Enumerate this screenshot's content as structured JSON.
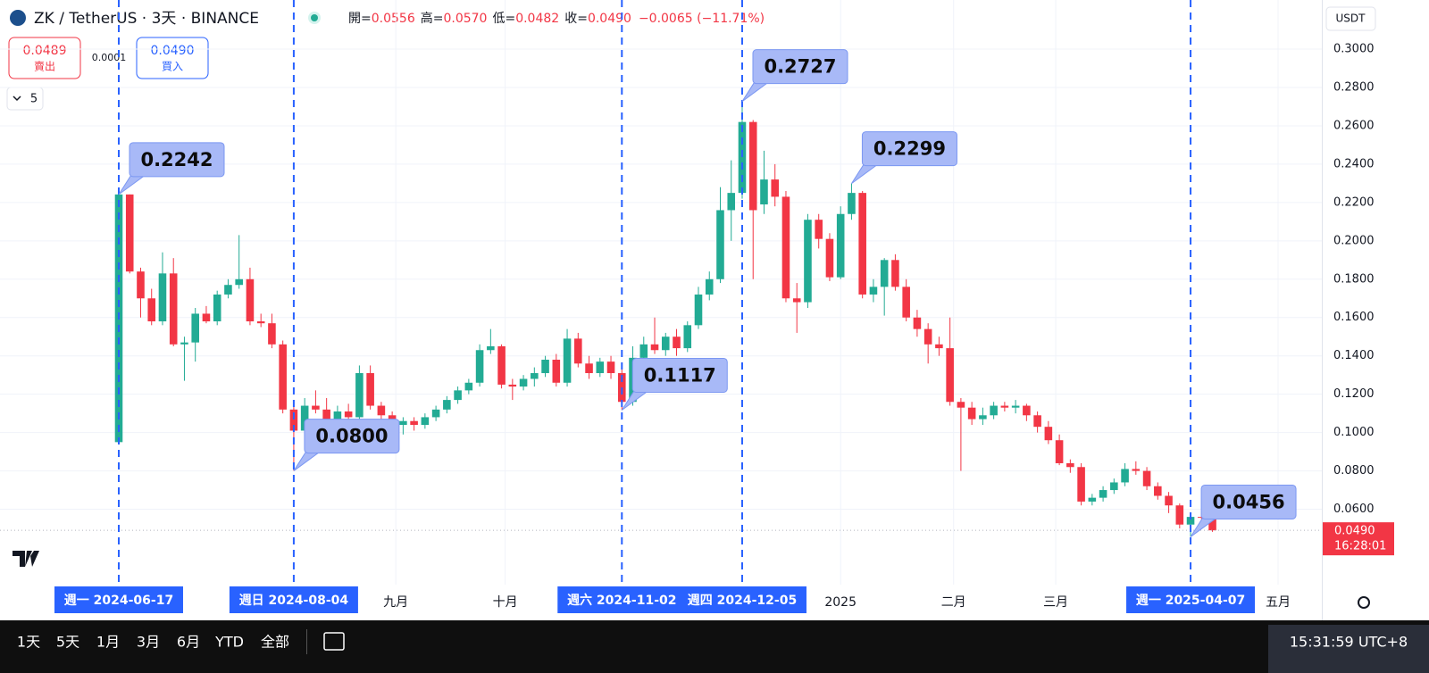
{
  "header": {
    "symbol": "ZK / TetherUS · 3天 · BINANCE",
    "ohlc": [
      {
        "label": "開=",
        "value": "0.0556"
      },
      {
        "label": "高=",
        "value": "0.0570"
      },
      {
        "label": "低=",
        "value": "0.0482"
      },
      {
        "label": "收=",
        "value": "0.0490"
      }
    ],
    "change": "−0.0065 (−11.71%)"
  },
  "trade": {
    "sell_price": "0.0489",
    "sell": "賣出",
    "spread": "0.0001",
    "buy_price": "0.0490",
    "buy": "買入"
  },
  "indicators": "5",
  "currency": "USDT",
  "toolbar": {
    "ranges": [
      "1天",
      "5天",
      "1月",
      "3月",
      "6月",
      "YTD",
      "全部"
    ],
    "clock": "15:31:59 UTC+8"
  },
  "chart_data": {
    "type": "candlestick",
    "up_color": "#22ab94",
    "down_color": "#f23645",
    "open": [
      0.095,
      0.2242,
      0.184,
      0.17,
      0.158,
      0.183,
      0.146,
      0.147,
      0.162,
      0.158,
      0.172,
      0.177,
      0.18,
      0.158,
      0.157,
      0.146,
      0.112,
      0.101,
      0.114,
      0.112,
      0.104,
      0.111,
      0.108,
      0.131,
      0.114,
      0.109,
      0.104,
      0.106,
      0.104,
      0.108,
      0.112,
      0.117,
      0.122,
      0.126,
      0.143,
      0.145,
      0.125,
      0.124,
      0.128,
      0.131,
      0.138,
      0.126,
      0.149,
      0.136,
      0.131,
      0.137,
      0.131,
      0.116,
      0.139,
      0.146,
      0.143,
      0.15,
      0.144,
      0.156,
      0.172,
      0.18,
      0.216,
      0.225,
      0.262,
      0.219,
      0.232,
      0.223,
      0.17,
      0.168,
      0.211,
      0.201,
      0.181,
      0.214,
      0.225,
      0.172,
      0.176,
      0.19,
      0.176,
      0.16,
      0.154,
      0.146,
      0.144,
      0.116,
      0.113,
      0.107,
      0.109,
      0.114,
      0.113,
      0.114,
      0.109,
      0.103,
      0.096,
      0.084,
      0.082,
      0.064,
      0.066,
      0.07,
      0.074,
      0.081,
      0.08,
      0.072,
      0.067,
      0.062,
      0.052,
      0.056,
      0.0556
    ],
    "high": [
      0.2242,
      0.2242,
      0.186,
      0.175,
      0.194,
      0.191,
      0.15,
      0.165,
      0.166,
      0.174,
      0.18,
      0.203,
      0.186,
      0.162,
      0.162,
      0.148,
      0.117,
      0.118,
      0.122,
      0.118,
      0.114,
      0.115,
      0.135,
      0.135,
      0.116,
      0.111,
      0.108,
      0.108,
      0.11,
      0.114,
      0.119,
      0.124,
      0.128,
      0.146,
      0.154,
      0.146,
      0.128,
      0.13,
      0.134,
      0.14,
      0.141,
      0.154,
      0.152,
      0.14,
      0.139,
      0.14,
      0.134,
      0.145,
      0.15,
      0.16,
      0.152,
      0.154,
      0.158,
      0.176,
      0.184,
      0.228,
      0.242,
      0.2727,
      0.263,
      0.247,
      0.24,
      0.226,
      0.178,
      0.214,
      0.214,
      0.204,
      0.218,
      0.2299,
      0.226,
      0.18,
      0.191,
      0.193,
      0.18,
      0.164,
      0.157,
      0.15,
      0.16,
      0.118,
      0.116,
      0.113,
      0.116,
      0.116,
      0.117,
      0.115,
      0.111,
      0.106,
      0.099,
      0.086,
      0.084,
      0.068,
      0.072,
      0.076,
      0.084,
      0.085,
      0.082,
      0.074,
      0.069,
      0.063,
      0.058,
      0.058,
      0.057
    ],
    "low": [
      0.095,
      0.183,
      0.16,
      0.156,
      0.156,
      0.145,
      0.127,
      0.137,
      0.157,
      0.156,
      0.17,
      0.175,
      0.156,
      0.155,
      0.144,
      0.11,
      0.08,
      0.099,
      0.11,
      0.103,
      0.102,
      0.105,
      0.106,
      0.112,
      0.106,
      0.097,
      0.099,
      0.101,
      0.102,
      0.106,
      0.11,
      0.115,
      0.12,
      0.124,
      0.141,
      0.123,
      0.117,
      0.122,
      0.124,
      0.129,
      0.124,
      0.124,
      0.134,
      0.128,
      0.129,
      0.128,
      0.1117,
      0.114,
      0.137,
      0.141,
      0.14,
      0.14,
      0.142,
      0.154,
      0.169,
      0.178,
      0.2,
      0.222,
      0.18,
      0.214,
      0.218,
      0.168,
      0.152,
      0.165,
      0.196,
      0.179,
      0.18,
      0.211,
      0.17,
      0.168,
      0.161,
      0.174,
      0.158,
      0.15,
      0.136,
      0.14,
      0.114,
      0.08,
      0.104,
      0.104,
      0.107,
      0.111,
      0.11,
      0.106,
      0.1,
      0.094,
      0.083,
      0.079,
      0.062,
      0.062,
      0.064,
      0.068,
      0.072,
      0.078,
      0.07,
      0.065,
      0.058,
      0.05,
      0.0456,
      0.054,
      0.0482
    ],
    "close": [
      0.2242,
      0.184,
      0.17,
      0.158,
      0.183,
      0.146,
      0.147,
      0.162,
      0.158,
      0.172,
      0.177,
      0.18,
      0.158,
      0.157,
      0.146,
      0.112,
      0.101,
      0.114,
      0.112,
      0.104,
      0.111,
      0.108,
      0.131,
      0.114,
      0.109,
      0.106,
      0.106,
      0.104,
      0.108,
      0.112,
      0.117,
      0.122,
      0.126,
      0.143,
      0.145,
      0.125,
      0.124,
      0.128,
      0.131,
      0.138,
      0.126,
      0.149,
      0.136,
      0.131,
      0.137,
      0.131,
      0.116,
      0.139,
      0.146,
      0.143,
      0.15,
      0.144,
      0.156,
      0.172,
      0.18,
      0.216,
      0.225,
      0.262,
      0.216,
      0.232,
      0.223,
      0.17,
      0.168,
      0.211,
      0.201,
      0.181,
      0.214,
      0.225,
      0.172,
      0.176,
      0.19,
      0.176,
      0.16,
      0.154,
      0.146,
      0.144,
      0.116,
      0.113,
      0.107,
      0.109,
      0.114,
      0.113,
      0.114,
      0.109,
      0.103,
      0.096,
      0.084,
      0.082,
      0.064,
      0.066,
      0.07,
      0.074,
      0.081,
      0.08,
      0.072,
      0.067,
      0.062,
      0.052,
      0.056,
      0.0556,
      0.049
    ],
    "xlim": [
      -10.86,
      110
    ],
    "ylim": [
      0.023,
      0.307
    ],
    "yticks": [
      {
        "value": 0.06,
        "label": "0.0600"
      },
      {
        "value": 0.08,
        "label": "0.0800"
      },
      {
        "value": 0.1,
        "label": "0.1000"
      },
      {
        "value": 0.12,
        "label": "0.1200"
      },
      {
        "value": 0.14,
        "label": "0.1400"
      },
      {
        "value": 0.16,
        "label": "0.1600"
      },
      {
        "value": 0.18,
        "label": "0.1800"
      },
      {
        "value": 0.2,
        "label": "0.2000"
      },
      {
        "value": 0.22,
        "label": "0.2200"
      },
      {
        "value": 0.24,
        "label": "0.2400"
      },
      {
        "value": 0.26,
        "label": "0.2600"
      },
      {
        "value": 0.28,
        "label": "0.2800"
      },
      {
        "value": 0.3,
        "label": "0.3000"
      }
    ],
    "xticks": [
      {
        "value": 25.33,
        "label": "九月"
      },
      {
        "value": 35.33,
        "label": "十月"
      },
      {
        "value": 66,
        "label": "2025"
      },
      {
        "value": 76.33,
        "label": "二月"
      },
      {
        "value": 85.67,
        "label": "三月"
      },
      {
        "value": 106,
        "label": "五月"
      }
    ],
    "grid": true,
    "markers": [
      {
        "index": 0,
        "label": "週一 2024-06-17"
      },
      {
        "index": 16,
        "label": "週日 2024-08-04"
      },
      {
        "index": 46,
        "label": "週六 2024-11-02"
      },
      {
        "index": 57,
        "label": "週四 2024-12-05"
      },
      {
        "index": 98,
        "label": "週一 2025-04-07"
      }
    ],
    "callouts": [
      {
        "index": 0,
        "value": 0.2242,
        "label": "0.2242"
      },
      {
        "index": 16,
        "value": 0.08,
        "label": "0.0800"
      },
      {
        "index": 46,
        "value": 0.1117,
        "label": "0.1117"
      },
      {
        "index": 57,
        "value": 0.2727,
        "label": "0.2727"
      },
      {
        "index": 67,
        "value": 0.2299,
        "label": "0.2299"
      },
      {
        "index": 98,
        "value": 0.0456,
        "label": "0.0456"
      }
    ],
    "current_price": {
      "value": 0.049,
      "label": "0.0490"
    },
    "countdown": "16:28:01"
  }
}
